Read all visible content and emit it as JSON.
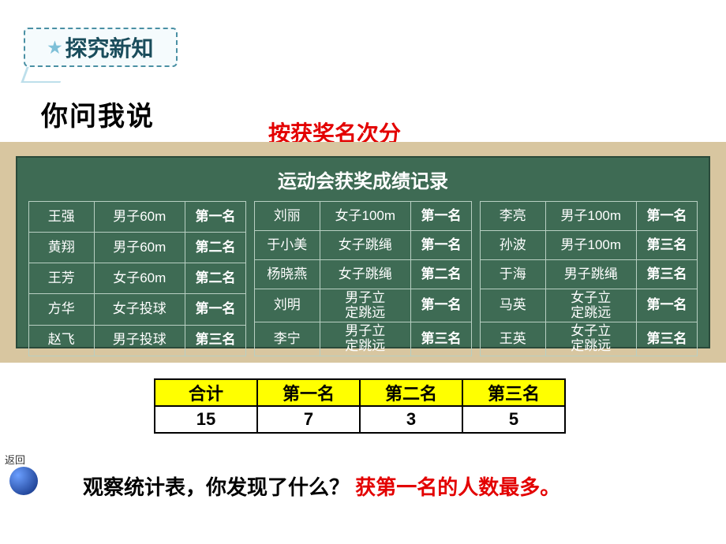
{
  "badge_text": "探究新知",
  "subtitle": "你问我说",
  "group_label": "按获奖名次分",
  "board_title": "运动会获奖成绩记录",
  "colors": {
    "chalkboard_bg": "#3e6b54",
    "chalkboard_frame": "#d8c6a0",
    "badge_border": "#4a90a4",
    "badge_bg": "#f5fbfd",
    "summary_header_bg": "#ffff00",
    "red_text": "#e30000"
  },
  "sections": [
    {
      "rows": [
        {
          "name": "王强",
          "event": "男子60m",
          "rank": "第一名"
        },
        {
          "name": "黄翔",
          "event": "男子60m",
          "rank": "第二名"
        },
        {
          "name": "王芳",
          "event": "女子60m",
          "rank": "第二名"
        },
        {
          "name": "方华",
          "event": "女子投球",
          "rank": "第一名"
        },
        {
          "name": "赵飞",
          "event": "男子投球",
          "rank": "第三名"
        }
      ]
    },
    {
      "rows": [
        {
          "name": "刘丽",
          "event": "女子100m",
          "rank": "第一名"
        },
        {
          "name": "于小美",
          "event": "女子跳绳",
          "rank": "第一名"
        },
        {
          "name": "杨晓燕",
          "event": "女子跳绳",
          "rank": "第二名"
        },
        {
          "name": "刘明",
          "event": "男子立\n定跳远",
          "rank": "第一名"
        },
        {
          "name": "李宁",
          "event": "男子立\n定跳远",
          "rank": "第三名"
        }
      ]
    },
    {
      "rows": [
        {
          "name": "李亮",
          "event": "男子100m",
          "rank": "第一名"
        },
        {
          "name": "孙波",
          "event": "男子100m",
          "rank": "第三名"
        },
        {
          "name": "于海",
          "event": "男子跳绳",
          "rank": "第三名"
        },
        {
          "name": "马英",
          "event": "女子立\n定跳远",
          "rank": "第一名"
        },
        {
          "name": "王英",
          "event": "女子立\n定跳远",
          "rank": "第三名"
        }
      ]
    }
  ],
  "summary": {
    "headers": [
      "合计",
      "第一名",
      "第二名",
      "第三名"
    ],
    "values": [
      "15",
      "7",
      "3",
      "5"
    ]
  },
  "back_label": "返回",
  "question_black": "观察统计表，你发现了什么？",
  "question_red": "获第一名的人数最多。"
}
